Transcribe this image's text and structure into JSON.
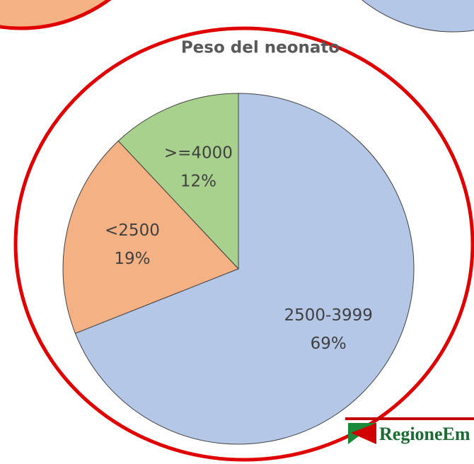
{
  "chart_data": {
    "type": "pie",
    "title": "Peso del neonato",
    "categories": [
      "2500-3999",
      "<2500",
      ">=4000"
    ],
    "values": [
      69,
      19,
      12
    ],
    "value_labels": [
      "69%",
      "19%",
      "12%"
    ],
    "colors": [
      "#b4c7e7",
      "#f4b183",
      "#a9d18e"
    ]
  },
  "logo": {
    "text": "RegioneEm"
  }
}
